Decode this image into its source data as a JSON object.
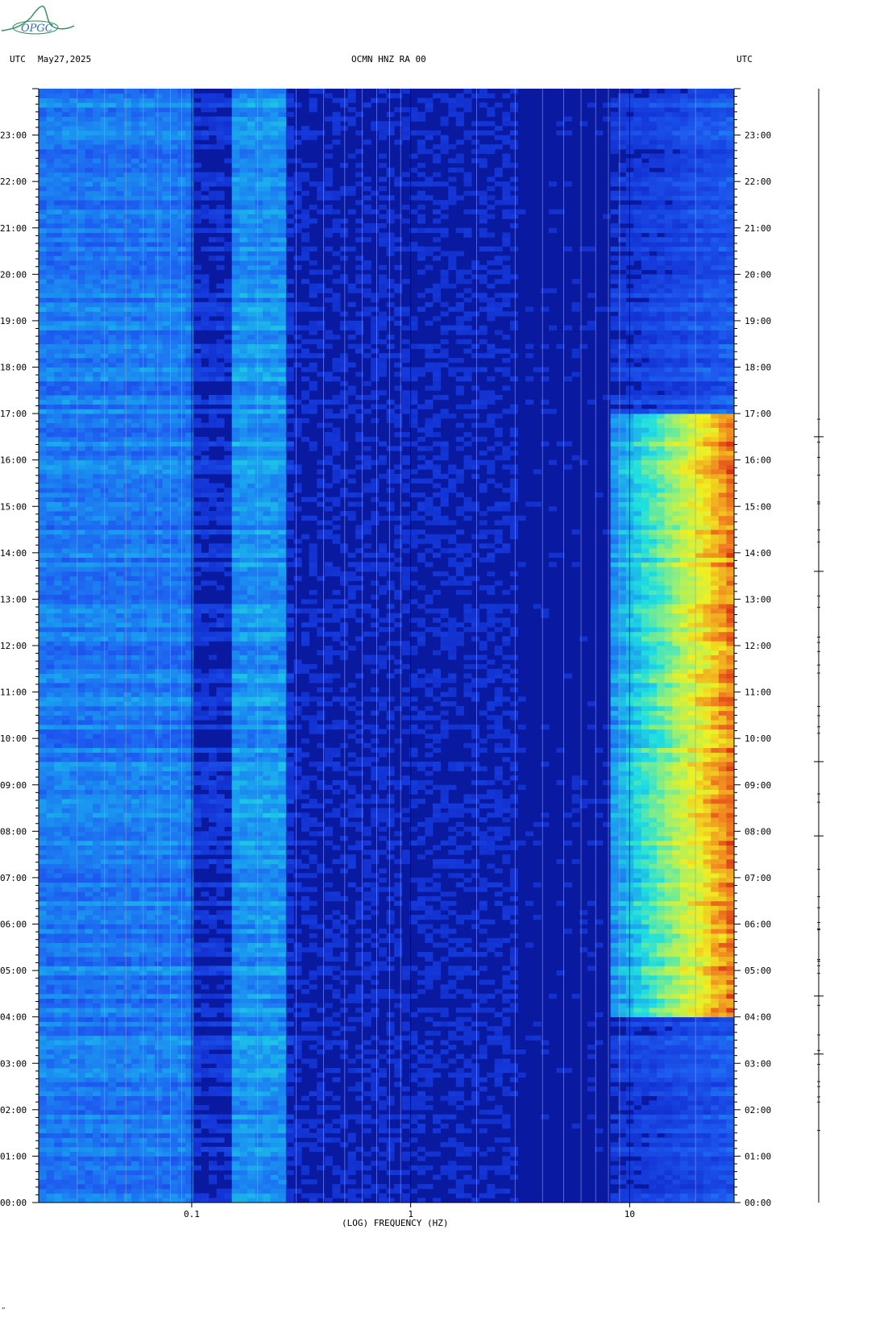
{
  "header": {
    "left_tz": "UTC",
    "date": "May27,2025",
    "station": "OCMN HNZ RA 00",
    "right_tz": "UTC"
  },
  "logo": {
    "text": "OPGC",
    "color": "#2e8b57"
  },
  "chart_data": {
    "type": "heatmap",
    "title": "OCMN HNZ RA 00",
    "xlabel": "(LOG) FREQUENCY (HZ)",
    "ylabel": "UTC",
    "x_scale": "log",
    "xlim": [
      0.02,
      30
    ],
    "x_ticks": [
      {
        "value": 0.1,
        "label": "0.1"
      },
      {
        "value": 1,
        "label": "1"
      },
      {
        "value": 10,
        "label": "10"
      }
    ],
    "y_range_hours": [
      0,
      24
    ],
    "y_ticks": [
      "00:00",
      "01:00",
      "02:00",
      "03:00",
      "04:00",
      "05:00",
      "06:00",
      "07:00",
      "08:00",
      "09:00",
      "10:00",
      "11:00",
      "12:00",
      "13:00",
      "14:00",
      "15:00",
      "16:00",
      "17:00",
      "18:00",
      "19:00",
      "20:00",
      "21:00",
      "22:00",
      "23:00"
    ],
    "grid_freqs_hz": [
      0.03,
      0.04,
      0.05,
      0.06,
      0.07,
      0.08,
      0.09,
      0.1,
      0.2,
      0.3,
      0.4,
      0.5,
      0.6,
      0.7,
      0.8,
      0.9,
      1,
      2,
      3,
      4,
      5,
      6,
      7,
      8,
      9,
      10,
      20,
      30
    ],
    "colormap": [
      "#0a1aa0",
      "#1436d8",
      "#1e5cf0",
      "#1a9cf0",
      "#20e0e0",
      "#9cf070",
      "#f0f020",
      "#f08020",
      "#d01010"
    ],
    "energy_bands": [
      {
        "freq_hz": [
          0.02,
          0.1
        ],
        "level": 0.25
      },
      {
        "freq_hz": [
          0.15,
          0.28
        ],
        "level": 0.3
      },
      {
        "freq_hz": [
          0.3,
          3
        ],
        "level": 0.08
      },
      {
        "freq_hz": [
          8,
          30
        ],
        "level_day_hours_4_to_17": 0.7,
        "level_other": 0.15
      }
    ],
    "trace_events_hours": [
      3.2,
      4.45,
      7.9,
      9.5,
      13.6,
      16.5
    ]
  },
  "bottom_mark": "\""
}
